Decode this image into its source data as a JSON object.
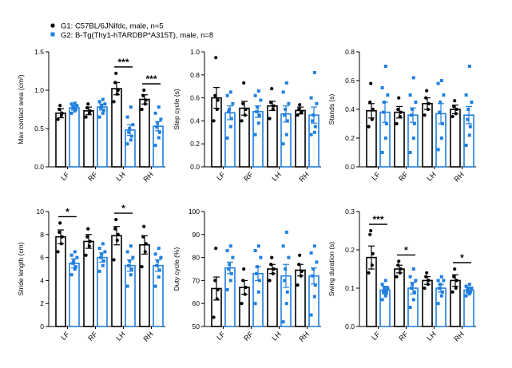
{
  "legend": [
    {
      "label": "G1: C57BL/6JNifdc, male, n=5",
      "color": "#000000",
      "marker": "circle"
    },
    {
      "label": "G2: B-Tg(Thy1-hTARDBP*A315T), male, n=8",
      "color": "#1f7fe0",
      "marker": "square"
    }
  ],
  "chart_data": [
    {
      "type": "bar",
      "ylabel": "Max contact area (cm²)",
      "ylim": [
        0,
        1.5
      ],
      "yticks": [
        "0.0",
        "0.5",
        "1.0",
        "1.5"
      ],
      "categories": [
        "LF",
        "RF",
        "LH",
        "RH"
      ],
      "series": [
        {
          "name": "G1",
          "means": [
            0.7,
            0.73,
            1.02,
            0.88
          ],
          "sem": [
            0.06,
            0.05,
            0.08,
            0.06
          ],
          "points": [
            [
              0.62,
              0.67,
              0.7,
              0.75,
              0.8
            ],
            [
              0.65,
              0.7,
              0.73,
              0.77,
              0.82
            ],
            [
              0.85,
              0.95,
              1.0,
              1.1,
              1.22
            ],
            [
              0.75,
              0.82,
              0.87,
              0.93,
              1.0
            ]
          ]
        },
        {
          "name": "G2",
          "means": [
            0.77,
            0.78,
            0.48,
            0.53
          ],
          "sem": [
            0.03,
            0.04,
            0.07,
            0.06
          ],
          "points": [
            [
              0.7,
              0.73,
              0.75,
              0.77,
              0.78,
              0.8,
              0.82,
              0.83
            ],
            [
              0.65,
              0.7,
              0.74,
              0.77,
              0.8,
              0.82,
              0.85,
              0.88
            ],
            [
              0.3,
              0.35,
              0.4,
              0.45,
              0.5,
              0.55,
              0.65,
              0.78
            ],
            [
              0.28,
              0.38,
              0.45,
              0.52,
              0.57,
              0.62,
              0.7,
              0.78
            ]
          ]
        }
      ],
      "significance": [
        {
          "category": "LH",
          "label": "***"
        },
        {
          "category": "RH",
          "label": "***"
        }
      ]
    },
    {
      "type": "bar",
      "ylabel": "Step cycle (s)",
      "ylim": [
        0,
        1.0
      ],
      "yticks": [
        "0.0",
        "0.2",
        "0.4",
        "0.6",
        "0.8",
        "1.0"
      ],
      "categories": [
        "LF",
        "RF",
        "LH",
        "RH"
      ],
      "series": [
        {
          "name": "G1",
          "means": [
            0.6,
            0.51,
            0.53,
            0.49
          ],
          "sem": [
            0.09,
            0.06,
            0.04,
            0.03
          ],
          "points": [
            [
              0.4,
              0.5,
              0.58,
              0.62,
              0.95
            ],
            [
              0.4,
              0.45,
              0.5,
              0.55,
              0.73
            ],
            [
              0.42,
              0.5,
              0.53,
              0.56,
              0.68
            ],
            [
              0.45,
              0.47,
              0.48,
              0.5,
              0.54
            ]
          ]
        },
        {
          "name": "G2",
          "means": [
            0.47,
            0.48,
            0.46,
            0.45
          ],
          "sem": [
            0.06,
            0.05,
            0.07,
            0.07
          ],
          "points": [
            [
              0.25,
              0.35,
              0.42,
              0.48,
              0.5,
              0.55,
              0.62,
              0.65
            ],
            [
              0.28,
              0.38,
              0.45,
              0.48,
              0.52,
              0.58,
              0.62,
              0.66
            ],
            [
              0.2,
              0.28,
              0.4,
              0.45,
              0.5,
              0.55,
              0.65,
              0.73
            ],
            [
              0.28,
              0.3,
              0.35,
              0.4,
              0.45,
              0.55,
              0.6,
              0.82
            ]
          ]
        }
      ],
      "significance": []
    },
    {
      "type": "bar",
      "ylabel": "Stands (s)",
      "ylim": [
        0,
        0.8
      ],
      "yticks": [
        "0.0",
        "0.2",
        "0.4",
        "0.6",
        "0.8"
      ],
      "categories": [
        "LF",
        "RF",
        "LH",
        "RH"
      ],
      "series": [
        {
          "name": "G1",
          "means": [
            0.39,
            0.38,
            0.44,
            0.4
          ],
          "sem": [
            0.05,
            0.04,
            0.04,
            0.03
          ],
          "points": [
            [
              0.28,
              0.33,
              0.4,
              0.45,
              0.58
            ],
            [
              0.3,
              0.35,
              0.38,
              0.4,
              0.48
            ],
            [
              0.36,
              0.4,
              0.44,
              0.48,
              0.53
            ],
            [
              0.35,
              0.37,
              0.4,
              0.42,
              0.46
            ]
          ]
        },
        {
          "name": "G2",
          "means": [
            0.38,
            0.36,
            0.37,
            0.36
          ],
          "sem": [
            0.07,
            0.05,
            0.07,
            0.06
          ],
          "points": [
            [
              0.1,
              0.2,
              0.3,
              0.38,
              0.45,
              0.5,
              0.55,
              0.7
            ],
            [
              0.1,
              0.2,
              0.3,
              0.36,
              0.4,
              0.45,
              0.5,
              0.62
            ],
            [
              0.12,
              0.2,
              0.3,
              0.38,
              0.45,
              0.5,
              0.58,
              0.6
            ],
            [
              0.15,
              0.22,
              0.28,
              0.33,
              0.4,
              0.45,
              0.5,
              0.7
            ]
          ]
        }
      ],
      "significance": []
    },
    {
      "type": "bar",
      "ylabel": "Stride length (cm)",
      "ylim": [
        0,
        10
      ],
      "yticks": [
        "0",
        "2",
        "4",
        "6",
        "8",
        "10"
      ],
      "categories": [
        "LF",
        "RF",
        "LH",
        "RH"
      ],
      "series": [
        {
          "name": "G1",
          "means": [
            7.8,
            7.4,
            7.9,
            7.1
          ],
          "sem": [
            0.6,
            0.6,
            0.8,
            0.8
          ],
          "points": [
            [
              6.5,
              7.2,
              7.8,
              8.2,
              9.0
            ],
            [
              6.2,
              7.0,
              7.4,
              7.8,
              8.5
            ],
            [
              5.8,
              7.5,
              8.0,
              8.5,
              9.3
            ],
            [
              5.2,
              6.5,
              7.2,
              7.8,
              8.7
            ]
          ]
        },
        {
          "name": "G2",
          "means": [
            5.5,
            6.0,
            5.3,
            5.3
          ],
          "sem": [
            0.4,
            0.4,
            0.5,
            0.5
          ],
          "points": [
            [
              4.5,
              5.0,
              5.2,
              5.5,
              5.7,
              6.0,
              6.2,
              6.5
            ],
            [
              4.8,
              5.3,
              5.7,
              6.0,
              6.3,
              6.5,
              6.8,
              7.2
            ],
            [
              3.5,
              4.5,
              5.0,
              5.3,
              5.7,
              6.0,
              6.5,
              7.0
            ],
            [
              3.5,
              4.3,
              4.9,
              5.3,
              5.7,
              6.0,
              6.3,
              6.8
            ]
          ]
        }
      ],
      "significance": [
        {
          "category": "LF",
          "label": "*"
        },
        {
          "category": "LH",
          "label": "*"
        }
      ]
    },
    {
      "type": "bar",
      "ylabel": "Duty cycle (%)",
      "ylim": [
        50,
        100
      ],
      "yticks": [
        "50",
        "60",
        "70",
        "80",
        "90",
        "100"
      ],
      "categories": [
        "LF",
        "RF",
        "LH",
        "RH"
      ],
      "series": [
        {
          "name": "G1",
          "means": [
            66.5,
            67.0,
            75.0,
            74.5
          ],
          "sem": [
            5.0,
            3.0,
            2.0,
            2.5
          ],
          "points": [
            [
              54,
              62,
              66,
              70,
              84
            ],
            [
              60,
              64,
              67,
              70,
              75
            ],
            [
              70,
              73,
              75,
              77,
              80
            ],
            [
              68,
              72,
              74,
              77,
              81
            ]
          ]
        },
        {
          "name": "G2",
          "means": [
            75.5,
            73.0,
            72.0,
            72.0
          ],
          "sem": [
            2.5,
            3.0,
            5.0,
            3.5
          ],
          "points": [
            [
              66,
              70,
              73,
              75,
              77,
              80,
              83,
              85
            ],
            [
              60,
              65,
              70,
              73,
              76,
              80,
              83,
              85
            ],
            [
              52,
              60,
              65,
              70,
              75,
              80,
              85,
              91
            ],
            [
              55,
              63,
              68,
              72,
              75,
              78,
              82,
              85
            ]
          ]
        }
      ],
      "significance": []
    },
    {
      "type": "bar",
      "ylabel": "Swing duration (s)",
      "ylim": [
        0,
        0.3
      ],
      "yticks": [
        "0.0",
        "0.1",
        "0.2",
        "0.3"
      ],
      "categories": [
        "LF",
        "RF",
        "LH",
        "RH"
      ],
      "series": [
        {
          "name": "G1",
          "means": [
            0.18,
            0.15,
            0.12,
            0.12
          ],
          "sem": [
            0.03,
            0.01,
            0.01,
            0.015
          ],
          "points": [
            [
              0.14,
              0.16,
              0.19,
              0.24,
              0.25
            ],
            [
              0.13,
              0.14,
              0.15,
              0.16,
              0.17
            ],
            [
              0.1,
              0.11,
              0.12,
              0.13,
              0.14
            ],
            [
              0.09,
              0.1,
              0.12,
              0.13,
              0.15
            ]
          ]
        },
        {
          "name": "G2",
          "means": [
            0.095,
            0.1,
            0.1,
            0.095
          ],
          "sem": [
            0.01,
            0.015,
            0.01,
            0.005
          ],
          "points": [
            [
              0.07,
              0.08,
              0.09,
              0.09,
              0.1,
              0.1,
              0.11,
              0.12
            ],
            [
              0.05,
              0.07,
              0.09,
              0.1,
              0.11,
              0.12,
              0.13,
              0.15
            ],
            [
              0.06,
              0.08,
              0.09,
              0.1,
              0.11,
              0.12,
              0.12,
              0.13
            ],
            [
              0.08,
              0.085,
              0.09,
              0.09,
              0.1,
              0.1,
              0.105,
              0.11
            ]
          ]
        }
      ],
      "significance": [
        {
          "category": "LF",
          "label": "***"
        },
        {
          "category": "RF",
          "label": "*"
        },
        {
          "category": "RH",
          "label": "*"
        }
      ]
    }
  ]
}
